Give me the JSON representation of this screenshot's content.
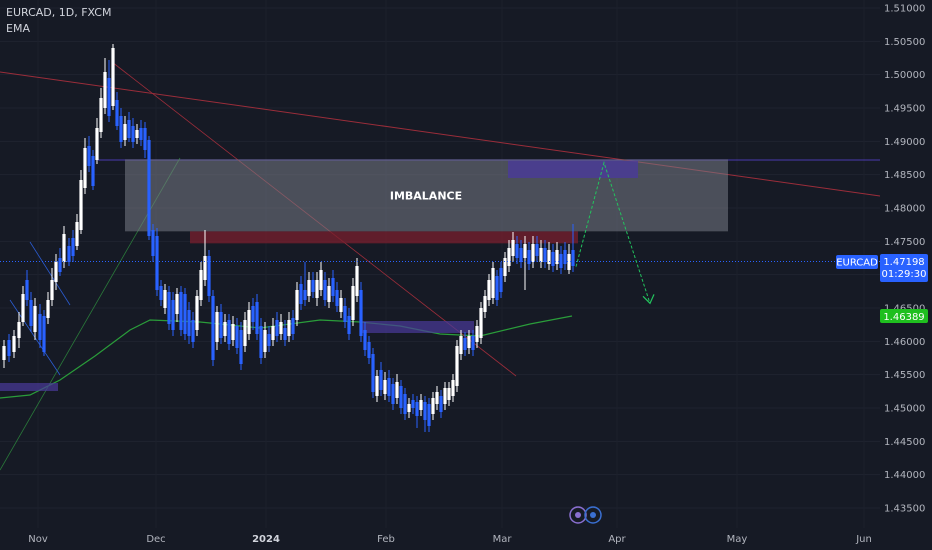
{
  "header": {
    "symbol_line": "EURCAD, 1D, FXCM",
    "indicator": "EMA"
  },
  "colors": {
    "background": "#161a25",
    "candle_up": "#ffffff",
    "candle_down": "#2962ff",
    "ema": "#2a9d3a",
    "imbalance_zone": "#787b86",
    "red_zone": "#7a1f2e",
    "purple_zone": "#4a3a9a",
    "projection": "#22c55e",
    "trendline": "#9b2d3a"
  },
  "annotations": {
    "imbalance_label": "IMBALANCE"
  },
  "price_tags": {
    "symbol_tag": "EURCAD",
    "last_price": "1.47198",
    "countdown": "01:29:30",
    "ema_value": "1.46389"
  },
  "chart_data": {
    "type": "candlestick",
    "title": "EURCAD, 1D, FXCM",
    "y_axis_ticks": [
      "1.51000",
      "1.50500",
      "1.50000",
      "1.49500",
      "1.49000",
      "1.48500",
      "1.48000",
      "1.47500",
      "1.47000",
      "1.46500",
      "1.46000",
      "1.45500",
      "1.45000",
      "1.44500",
      "1.44000",
      "1.43500"
    ],
    "x_axis_ticks": [
      "Nov",
      "Dec",
      "2024",
      "Feb",
      "Mar",
      "Apr",
      "May",
      "Jun"
    ],
    "ylim": [
      1.4345,
      1.511
    ],
    "last_price": 1.47198,
    "ema_last": 1.46389,
    "zones": [
      {
        "label": "IMBALANCE",
        "from": 1.4765,
        "to": 1.4873
      },
      {
        "label": "",
        "from": 1.4747,
        "to": 1.4765
      },
      {
        "label": "",
        "from": 1.4845,
        "to": 1.4871
      }
    ],
    "projection_path": [
      1.4712,
      1.4868,
      1.4657
    ],
    "ema": [
      1.4537,
      1.454,
      1.456,
      1.46,
      1.4634,
      1.4637,
      1.4635,
      1.4634,
      1.4636,
      1.463,
      1.462,
      1.4613,
      1.4609,
      1.463,
      1.4643
    ]
  }
}
